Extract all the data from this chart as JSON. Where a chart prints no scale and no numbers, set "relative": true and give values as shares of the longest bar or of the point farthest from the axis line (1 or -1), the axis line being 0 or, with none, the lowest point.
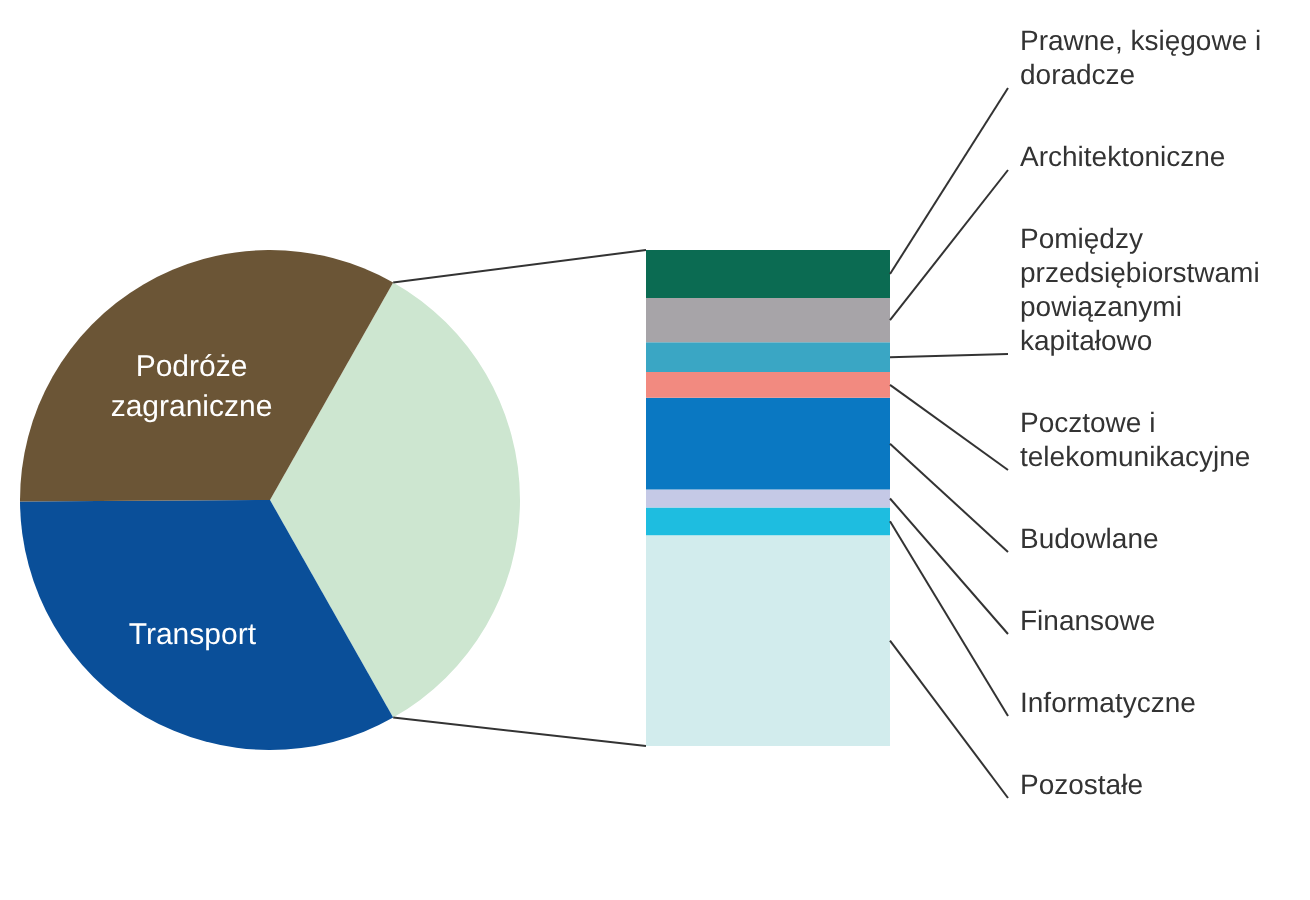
{
  "chart_data": [
    {
      "type": "pie",
      "categories": [
        null,
        "Transport",
        "Podróże zagraniczne"
      ],
      "values": [
        33.6,
        33.1,
        33.3
      ],
      "colors": [
        "#cde6d0",
        "#0a4f99",
        "#6b5536"
      ]
    },
    {
      "type": "bar",
      "stacked": true,
      "relative": true,
      "categories": [
        null
      ],
      "series": [
        {
          "name": "Pozostałe",
          "color": "#d2eced",
          "values": [
            0.425
          ]
        },
        {
          "name": "Informatyczne",
          "color": "#1ebde0",
          "values": [
            0.056
          ]
        },
        {
          "name": "Finansowe",
          "color": "#c5c9e6",
          "values": [
            0.036
          ]
        },
        {
          "name": "Budowlane",
          "color": "#0a78c2",
          "values": [
            0.185
          ]
        },
        {
          "name": "Pocztowe i telekomunikacyjne",
          "color": "#f28a80",
          "values": [
            0.052
          ]
        },
        {
          "name": "Pomiędzy przedsiębiorstwami powiązanymi kapitałowo",
          "color": "#3aa6c4",
          "values": [
            0.06
          ]
        },
        {
          "name": "Architektoniczne",
          "color": "#a7a4a8",
          "values": [
            0.089
          ]
        },
        {
          "name": "Prawne, księgowe i doradcze",
          "color": "#0b6b52",
          "values": [
            0.097
          ]
        }
      ]
    }
  ]
}
